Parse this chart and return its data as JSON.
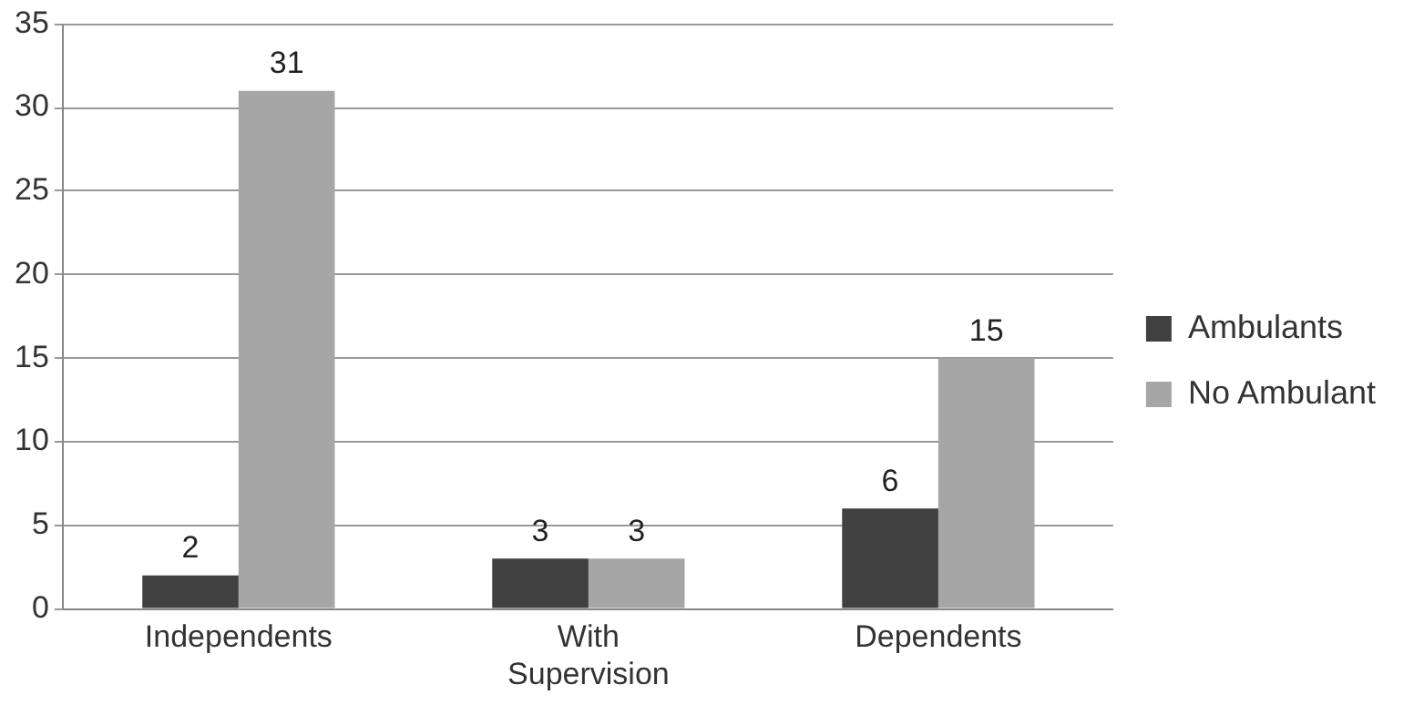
{
  "chart_data": {
    "type": "bar",
    "categories": [
      "Independents",
      "With Supervision",
      "Dependents"
    ],
    "series": [
      {
        "name": "Ambulants",
        "color": "#404040",
        "values": [
          2,
          3,
          6
        ]
      },
      {
        "name": "No Ambulant",
        "color": "#a6a6a6",
        "values": [
          31,
          3,
          15
        ]
      }
    ],
    "ylim": [
      0,
      35
    ],
    "yticks": [
      0,
      5,
      10,
      15,
      20,
      25,
      30,
      35
    ],
    "grid": "y",
    "legend": "right",
    "data_labels": true
  }
}
